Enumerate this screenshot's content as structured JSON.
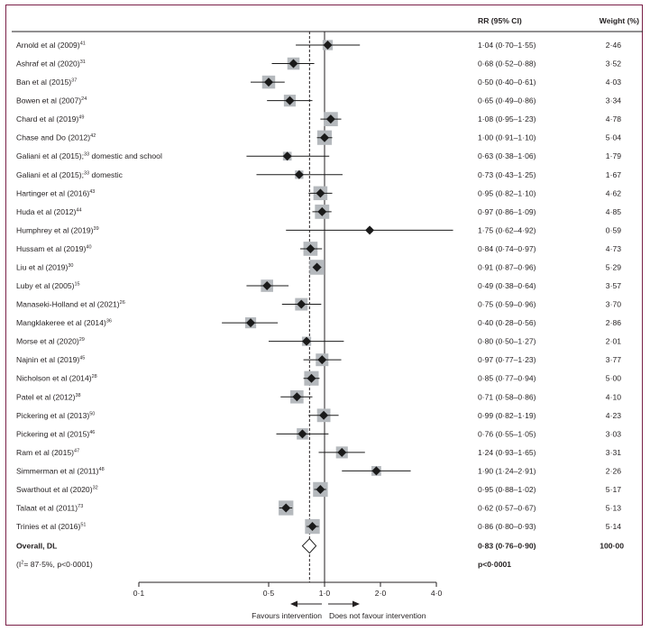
{
  "chart_data": {
    "type": "forest",
    "title": "",
    "columns": {
      "estimate": "RR (95% CI)",
      "weight": "Weight (%)"
    },
    "xscale": "log",
    "xlim": [
      0.1,
      4.0
    ],
    "xticks": [
      0.1,
      0.5,
      1.0,
      2.0,
      4.0
    ],
    "xtick_labels": [
      "0·1",
      "0·5",
      "1·0",
      "2·0",
      "4·0"
    ],
    "null_line": 1.0,
    "pooled_line": 0.83,
    "direction_left": "Favours intervention",
    "direction_right": "Does not favour intervention",
    "colors": {
      "square": "#b5b9bd",
      "marker": "#1a1a1a",
      "border": "#7a2048",
      "text": "#231f20"
    },
    "studies": [
      {
        "label": "Arnold et al (2009)",
        "ref": "41",
        "rr": 1.04,
        "lo": 0.7,
        "hi": 1.55,
        "rr_text": "1·04 (0·70–1·55)",
        "weight": 2.46,
        "weight_text": "2·46"
      },
      {
        "label": "Ashraf et al (2020)",
        "ref": "31",
        "rr": 0.68,
        "lo": 0.52,
        "hi": 0.88,
        "rr_text": "0·68 (0·52–0·88)",
        "weight": 3.52,
        "weight_text": "3·52"
      },
      {
        "label": "Ban et al (2015)",
        "ref": "37",
        "rr": 0.5,
        "lo": 0.4,
        "hi": 0.61,
        "rr_text": "0·50 (0·40–0·61)",
        "weight": 4.03,
        "weight_text": "4·03"
      },
      {
        "label": "Bowen et al (2007)",
        "ref": "24",
        "rr": 0.65,
        "lo": 0.49,
        "hi": 0.86,
        "rr_text": "0·65 (0·49–0·86)",
        "weight": 3.34,
        "weight_text": "3·34"
      },
      {
        "label": "Chard et al (2019)",
        "ref": "49",
        "rr": 1.08,
        "lo": 0.95,
        "hi": 1.23,
        "rr_text": "1·08 (0·95–1·23)",
        "weight": 4.78,
        "weight_text": "4·78"
      },
      {
        "label": "Chase and Do (2012)",
        "ref": "42",
        "rr": 1.0,
        "lo": 0.91,
        "hi": 1.1,
        "rr_text": "1·00 (0·91–1·10)",
        "weight": 5.04,
        "weight_text": "5·04"
      },
      {
        "label": "Galiani et al (2015);",
        "ref": "33",
        "suffix": " domestic and school",
        "rr": 0.63,
        "lo": 0.38,
        "hi": 1.06,
        "rr_text": "0·63 (0·38–1·06)",
        "weight": 1.79,
        "weight_text": "1·79"
      },
      {
        "label": "Galiani et al (2015);",
        "ref": "33",
        "suffix": " domestic",
        "rr": 0.73,
        "lo": 0.43,
        "hi": 1.25,
        "rr_text": "0·73 (0·43–1·25)",
        "weight": 1.67,
        "weight_text": "1·67"
      },
      {
        "label": "Hartinger et al (2016)",
        "ref": "43",
        "rr": 0.95,
        "lo": 0.82,
        "hi": 1.1,
        "rr_text": "0·95 (0·82–1·10)",
        "weight": 4.62,
        "weight_text": "4·62"
      },
      {
        "label": "Huda et al (2012)",
        "ref": "44",
        "rr": 0.97,
        "lo": 0.86,
        "hi": 1.09,
        "rr_text": "0·97 (0·86–1·09)",
        "weight": 4.85,
        "weight_text": "4·85"
      },
      {
        "label": "Humphrey et al (2019)",
        "ref": "39",
        "rr": 1.75,
        "lo": 0.62,
        "hi": 4.92,
        "rr_text": "1·75 (0·62–4·92)",
        "weight": 0.59,
        "weight_text": "0·59"
      },
      {
        "label": "Hussam et al (2019)",
        "ref": "40",
        "rr": 0.84,
        "lo": 0.74,
        "hi": 0.97,
        "rr_text": "0·84 (0·74–0·97)",
        "weight": 4.73,
        "weight_text": "4·73"
      },
      {
        "label": "Liu et al (2019)",
        "ref": "30",
        "rr": 0.91,
        "lo": 0.87,
        "hi": 0.96,
        "rr_text": "0·91 (0·87–0·96)",
        "weight": 5.29,
        "weight_text": "5·29"
      },
      {
        "label": "Luby et al (2005)",
        "ref": "15",
        "rr": 0.49,
        "lo": 0.38,
        "hi": 0.64,
        "rr_text": "0·49 (0·38–0·64)",
        "weight": 3.57,
        "weight_text": "3·57"
      },
      {
        "label": "Manaseki-Holland et al (2021)",
        "ref": "26",
        "rr": 0.75,
        "lo": 0.59,
        "hi": 0.96,
        "rr_text": "0·75 (0·59–0·96)",
        "weight": 3.7,
        "weight_text": "3·70"
      },
      {
        "label": "Mangklakeree et al (2014)",
        "ref": "36",
        "rr": 0.4,
        "lo": 0.28,
        "hi": 0.56,
        "rr_text": "0·40 (0·28–0·56)",
        "weight": 2.86,
        "weight_text": "2·86"
      },
      {
        "label": "Morse et al (2020)",
        "ref": "29",
        "rr": 0.8,
        "lo": 0.5,
        "hi": 1.27,
        "rr_text": "0·80 (0·50–1·27)",
        "weight": 2.01,
        "weight_text": "2·01"
      },
      {
        "label": "Najnin et al (2019)",
        "ref": "45",
        "rr": 0.97,
        "lo": 0.77,
        "hi": 1.23,
        "rr_text": "0·97 (0·77–1·23)",
        "weight": 3.77,
        "weight_text": "3·77"
      },
      {
        "label": "Nicholson et al (2014)",
        "ref": "28",
        "rr": 0.85,
        "lo": 0.77,
        "hi": 0.94,
        "rr_text": "0·85 (0·77–0·94)",
        "weight": 5.0,
        "weight_text": "5·00"
      },
      {
        "label": "Patel et al (2012)",
        "ref": "38",
        "rr": 0.71,
        "lo": 0.58,
        "hi": 0.86,
        "rr_text": "0·71 (0·58–0·86)",
        "weight": 4.1,
        "weight_text": "4·10"
      },
      {
        "label": "Pickering et al (2013)",
        "ref": "50",
        "rr": 0.99,
        "lo": 0.82,
        "hi": 1.19,
        "rr_text": "0·99 (0·82–1·19)",
        "weight": 4.23,
        "weight_text": "4·23"
      },
      {
        "label": "Pickering et al (2015)",
        "ref": "46",
        "rr": 0.76,
        "lo": 0.55,
        "hi": 1.05,
        "rr_text": "0·76 (0·55–1·05)",
        "weight": 3.03,
        "weight_text": "3·03"
      },
      {
        "label": "Ram et al (2015)",
        "ref": "47",
        "rr": 1.24,
        "lo": 0.93,
        "hi": 1.65,
        "rr_text": "1·24 (0·93–1·65)",
        "weight": 3.31,
        "weight_text": "3·31"
      },
      {
        "label": "Simmerman et al (2011)",
        "ref": "48",
        "rr": 1.9,
        "lo": 1.24,
        "hi": 2.91,
        "rr_text": "1·90 (1·24–2·91)",
        "weight": 2.26,
        "weight_text": "2·26"
      },
      {
        "label": "Swarthout et al (2020)",
        "ref": "32",
        "rr": 0.95,
        "lo": 0.88,
        "hi": 1.02,
        "rr_text": "0·95 (0·88–1·02)",
        "weight": 5.17,
        "weight_text": "5·17"
      },
      {
        "label": "Talaat et al (2011)",
        "ref": "73",
        "rr": 0.62,
        "lo": 0.57,
        "hi": 0.67,
        "rr_text": "0·62 (0·57–0·67)",
        "weight": 5.13,
        "weight_text": "5·13"
      },
      {
        "label": "Trinies et al (2016)",
        "ref": "51",
        "rr": 0.86,
        "lo": 0.8,
        "hi": 0.93,
        "rr_text": "0·86 (0·80–0·93)",
        "weight": 5.14,
        "weight_text": "5·14"
      }
    ],
    "overall": {
      "label": "Overall, DL",
      "rr": 0.83,
      "lo": 0.76,
      "hi": 0.9,
      "rr_text": "0·83 (0·76–0·90)",
      "weight_text": "100·00",
      "heterogeneity_prefix": "(I",
      "heterogeneity_sup": "2",
      "heterogeneity_rest": "= 87·5%, p<0·0001)",
      "p_text": "p<0·0001"
    }
  }
}
